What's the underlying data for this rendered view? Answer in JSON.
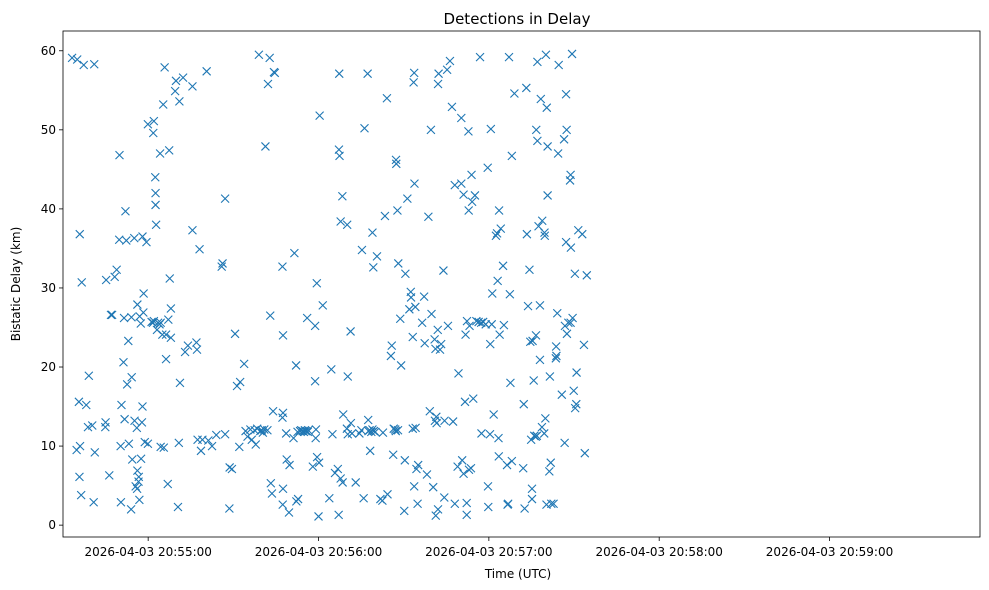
{
  "chart_data": {
    "type": "scatter",
    "title": "Detections in Delay",
    "xlabel": "Time (UTC)",
    "ylabel": "Bistatic Delay (km)",
    "marker": "x",
    "color": "#1f77b4",
    "x_unit": "seconds after 2026-04-03 20:54:00",
    "xlim": [
      30,
      353
    ],
    "ylim": [
      -1.5,
      62.5
    ],
    "xticks": [
      60,
      120,
      180,
      240,
      300
    ],
    "xtick_labels": [
      "2026-04-03 20:55:00",
      "2026-04-03 20:56:00",
      "2026-04-03 20:57:00",
      "2026-04-03 20:58:00",
      "2026-04-03 20:59:00"
    ],
    "yticks": [
      0,
      10,
      20,
      30,
      40,
      50,
      60
    ],
    "ytick_labels": [
      "0",
      "10",
      "20",
      "30",
      "40",
      "50",
      "60"
    ],
    "points": [
      [
        33.2,
        59.1
      ],
      [
        35.0,
        58.9
      ],
      [
        37.3,
        58.2
      ],
      [
        41.0,
        58.3
      ],
      [
        34.8,
        9.5
      ],
      [
        36.0,
        10.0
      ],
      [
        35.8,
        6.1
      ],
      [
        36.4,
        3.8
      ],
      [
        35.6,
        15.6
      ],
      [
        35.9,
        36.8
      ],
      [
        36.6,
        30.7
      ],
      [
        38.2,
        15.2
      ],
      [
        38.8,
        12.4
      ],
      [
        39.1,
        18.9
      ],
      [
        40.8,
        2.9
      ],
      [
        41.2,
        9.2
      ],
      [
        40.3,
        12.6
      ],
      [
        45.2,
        31.0
      ],
      [
        45.0,
        13.0
      ],
      [
        44.9,
        12.4
      ],
      [
        46.3,
        6.3
      ],
      [
        46.9,
        26.6
      ],
      [
        47.3,
        26.6
      ],
      [
        48.2,
        31.4
      ],
      [
        48.9,
        32.3
      ],
      [
        49.9,
        46.8
      ],
      [
        49.8,
        36.1
      ],
      [
        50.3,
        10.0
      ],
      [
        50.4,
        2.9
      ],
      [
        50.6,
        15.2
      ],
      [
        51.3,
        20.6
      ],
      [
        51.5,
        26.2
      ],
      [
        51.7,
        13.4
      ],
      [
        52.0,
        39.7
      ],
      [
        52.3,
        36.0
      ],
      [
        52.6,
        17.8
      ],
      [
        53.0,
        23.3
      ],
      [
        53.2,
        10.3
      ],
      [
        54.2,
        18.7
      ],
      [
        54.1,
        26.3
      ],
      [
        54.4,
        8.3
      ],
      [
        54.0,
        2.0
      ],
      [
        55.1,
        36.3
      ],
      [
        55.2,
        13.2
      ],
      [
        56.2,
        27.9
      ],
      [
        55.6,
        4.9
      ],
      [
        56.0,
        12.3
      ],
      [
        56.1,
        4.6
      ],
      [
        56.2,
        6.9
      ],
      [
        56.6,
        5.5
      ],
      [
        56.7,
        6.1
      ],
      [
        56.9,
        3.2
      ],
      [
        57.0,
        26.4
      ],
      [
        57.4,
        25.5
      ],
      [
        57.5,
        8.4
      ],
      [
        57.8,
        13.0
      ],
      [
        58.0,
        36.5
      ],
      [
        58.0,
        15.0
      ],
      [
        58.3,
        26.9
      ],
      [
        58.4,
        29.3
      ],
      [
        58.8,
        10.5
      ],
      [
        59.9,
        10.3
      ],
      [
        59.4,
        35.8
      ],
      [
        59.9,
        50.7
      ],
      [
        61.2,
        25.7
      ],
      [
        61.7,
        25.6
      ],
      [
        62.0,
        25.8
      ],
      [
        61.8,
        49.6
      ],
      [
        62.0,
        51.1
      ],
      [
        62.6,
        40.5
      ],
      [
        62.6,
        42.0
      ],
      [
        62.5,
        44.0
      ],
      [
        62.8,
        38.0
      ],
      [
        63.1,
        24.7
      ],
      [
        63.5,
        25.6
      ],
      [
        64.0,
        25.4
      ],
      [
        64.4,
        25.6
      ],
      [
        64.2,
        47.0
      ],
      [
        64.4,
        9.9
      ],
      [
        65.3,
        53.2
      ],
      [
        65.0,
        24.1
      ],
      [
        65.5,
        9.8
      ],
      [
        65.8,
        57.9
      ],
      [
        66.3,
        24.1
      ],
      [
        66.3,
        21.0
      ],
      [
        66.9,
        5.2
      ],
      [
        67.1,
        26.0
      ],
      [
        67.4,
        47.4
      ],
      [
        67.6,
        31.2
      ],
      [
        68.0,
        27.4
      ],
      [
        68.0,
        23.7
      ],
      [
        69.5,
        54.9
      ],
      [
        69.8,
        56.2
      ],
      [
        70.5,
        2.3
      ],
      [
        71.2,
        18.0
      ],
      [
        71.0,
        53.6
      ],
      [
        70.8,
        10.4
      ],
      [
        72.3,
        56.6
      ],
      [
        73.0,
        21.9
      ],
      [
        74.0,
        22.7
      ],
      [
        75.6,
        55.5
      ],
      [
        75.6,
        37.3
      ],
      [
        77.0,
        23.1
      ],
      [
        77.2,
        22.2
      ],
      [
        77.4,
        10.8
      ],
      [
        78.1,
        34.9
      ],
      [
        78.6,
        9.4
      ],
      [
        79.1,
        10.8
      ],
      [
        80.6,
        57.4
      ],
      [
        81.2,
        10.7
      ],
      [
        82.5,
        10.0
      ],
      [
        84.0,
        11.4
      ],
      [
        85.9,
        32.7
      ],
      [
        86.2,
        33.1
      ],
      [
        87.1,
        11.5
      ],
      [
        87.1,
        41.3
      ],
      [
        88.6,
        2.1
      ],
      [
        88.7,
        7.3
      ],
      [
        89.5,
        7.1
      ],
      [
        90.6,
        24.2
      ],
      [
        91.3,
        17.6
      ],
      [
        92.1,
        9.9
      ],
      [
        92.4,
        18.1
      ],
      [
        93.8,
        20.4
      ],
      [
        94.3,
        11.9
      ],
      [
        95.0,
        11.2
      ],
      [
        96.0,
        12.1
      ],
      [
        96.5,
        10.8
      ],
      [
        97.5,
        12.0
      ],
      [
        97.9,
        10.2
      ],
      [
        98.4,
        12.2
      ],
      [
        99.0,
        59.5
      ],
      [
        99.5,
        11.9
      ],
      [
        100.0,
        12.0
      ],
      [
        100.4,
        11.7
      ],
      [
        100.9,
        12.1
      ],
      [
        101.3,
        47.9
      ],
      [
        102.0,
        12.0
      ],
      [
        102.2,
        55.8
      ],
      [
        102.8,
        59.1
      ],
      [
        103.2,
        5.3
      ],
      [
        103.0,
        26.5
      ],
      [
        103.6,
        4.0
      ],
      [
        104.0,
        14.4
      ],
      [
        104.3,
        57.3
      ],
      [
        104.6,
        57.2
      ],
      [
        107.3,
        32.7
      ],
      [
        107.4,
        2.6
      ],
      [
        107.5,
        4.6
      ],
      [
        107.5,
        14.2
      ],
      [
        107.3,
        13.6
      ],
      [
        107.5,
        24.0
      ],
      [
        108.6,
        11.6
      ],
      [
        108.8,
        8.3
      ],
      [
        109.6,
        1.6
      ],
      [
        109.8,
        7.6
      ],
      [
        111.2,
        11.0
      ],
      [
        111.5,
        34.4
      ],
      [
        112.1,
        20.2
      ],
      [
        112.2,
        3.0
      ],
      [
        112.6,
        11.8
      ],
      [
        112.8,
        3.3
      ],
      [
        113.5,
        11.9
      ],
      [
        113.9,
        12.0
      ],
      [
        114.4,
        11.9
      ],
      [
        114.9,
        11.8
      ],
      [
        115.2,
        12.0
      ],
      [
        115.5,
        11.9
      ],
      [
        116.0,
        26.2
      ],
      [
        116.2,
        11.8
      ],
      [
        116.4,
        12.0
      ],
      [
        118.0,
        7.4
      ],
      [
        118.8,
        18.2
      ],
      [
        118.8,
        25.2
      ],
      [
        119.0,
        11.0
      ],
      [
        119.1,
        12.1
      ],
      [
        119.4,
        30.6
      ],
      [
        119.5,
        8.6
      ],
      [
        120.0,
        1.1
      ],
      [
        120.2,
        7.9
      ],
      [
        120.4,
        51.8
      ],
      [
        121.5,
        27.8
      ],
      [
        123.8,
        3.4
      ],
      [
        124.5,
        19.7
      ],
      [
        124.9,
        11.5
      ],
      [
        125.8,
        6.6
      ],
      [
        126.8,
        7.1
      ],
      [
        127.1,
        1.3
      ],
      [
        127.3,
        57.1
      ],
      [
        127.2,
        47.5
      ],
      [
        127.4,
        46.7
      ],
      [
        127.8,
        38.4
      ],
      [
        127.8,
        5.9
      ],
      [
        128.4,
        41.6
      ],
      [
        128.5,
        5.4
      ],
      [
        128.7,
        14.0
      ],
      [
        130.0,
        12.2
      ],
      [
        130.1,
        38.0
      ],
      [
        130.3,
        18.8
      ],
      [
        130.3,
        11.5
      ],
      [
        131.3,
        24.5
      ],
      [
        131.4,
        12.9
      ],
      [
        131.8,
        11.6
      ],
      [
        133.1,
        5.4
      ],
      [
        134.4,
        11.6
      ],
      [
        135.1,
        12.0
      ],
      [
        135.3,
        34.8
      ],
      [
        135.9,
        3.4
      ],
      [
        136.2,
        50.2
      ],
      [
        137.3,
        57.1
      ],
      [
        137.5,
        13.3
      ],
      [
        137.6,
        11.9
      ],
      [
        138.0,
        12.0
      ],
      [
        138.2,
        9.4
      ],
      [
        138.6,
        11.8
      ],
      [
        139.0,
        12.1
      ],
      [
        139.5,
        11.9
      ],
      [
        139.0,
        37.0
      ],
      [
        139.3,
        32.6
      ],
      [
        140.0,
        11.8
      ],
      [
        140.6,
        34.0
      ],
      [
        141.8,
        3.3
      ],
      [
        142.5,
        3.1
      ],
      [
        142.7,
        11.7
      ],
      [
        143.4,
        39.1
      ],
      [
        144.1,
        54.0
      ],
      [
        144.3,
        3.9
      ],
      [
        145.5,
        21.4
      ],
      [
        145.8,
        22.7
      ],
      [
        146.5,
        12.2
      ],
      [
        146.3,
        8.9
      ],
      [
        147.0,
        12.1
      ],
      [
        147.2,
        11.9
      ],
      [
        147.3,
        46.2
      ],
      [
        147.4,
        45.7
      ],
      [
        148.0,
        12.0
      ],
      [
        147.8,
        39.8
      ],
      [
        148.1,
        33.1
      ],
      [
        148.8,
        26.1
      ],
      [
        149.1,
        20.2
      ],
      [
        150.2,
        1.8
      ],
      [
        150.4,
        8.2
      ],
      [
        150.6,
        31.8
      ],
      [
        151.3,
        41.3
      ],
      [
        152.0,
        27.3
      ],
      [
        152.5,
        29.5
      ],
      [
        152.6,
        28.8
      ],
      [
        153.2,
        12.2
      ],
      [
        153.2,
        23.8
      ],
      [
        153.7,
        57.2
      ],
      [
        153.5,
        56.0
      ],
      [
        153.7,
        4.9
      ],
      [
        153.8,
        43.2
      ],
      [
        154.2,
        12.3
      ],
      [
        154.1,
        27.6
      ],
      [
        154.5,
        7.1
      ],
      [
        154.9,
        2.7
      ],
      [
        155.1,
        7.6
      ],
      [
        156.5,
        25.6
      ],
      [
        157.2,
        28.9
      ],
      [
        157.4,
        23.0
      ],
      [
        158.2,
        6.4
      ],
      [
        158.7,
        39.0
      ],
      [
        159.2,
        14.4
      ],
      [
        159.6,
        50.0
      ],
      [
        159.8,
        26.7
      ],
      [
        160.4,
        4.8
      ],
      [
        161.0,
        13.2
      ],
      [
        160.9,
        23.5
      ],
      [
        161.2,
        22.3
      ],
      [
        161.3,
        1.2
      ],
      [
        161.5,
        13.7
      ],
      [
        161.6,
        12.9
      ],
      [
        162.0,
        24.7
      ],
      [
        162.1,
        55.8
      ],
      [
        162.3,
        57.1
      ],
      [
        162.1,
        2.0
      ],
      [
        162.8,
        22.2
      ],
      [
        163.2,
        22.9
      ],
      [
        164.0,
        32.2
      ],
      [
        164.3,
        3.5
      ],
      [
        164.4,
        13.2
      ],
      [
        165.3,
        57.6
      ],
      [
        165.6,
        25.2
      ],
      [
        166.3,
        58.7
      ],
      [
        167.4,
        13.1
      ],
      [
        167.0,
        52.9
      ],
      [
        168.0,
        2.7
      ],
      [
        168.0,
        43.0
      ],
      [
        169.0,
        7.4
      ],
      [
        169.3,
        19.2
      ],
      [
        170.3,
        43.2
      ],
      [
        170.3,
        51.5
      ],
      [
        170.6,
        8.2
      ],
      [
        171.1,
        6.5
      ],
      [
        171.1,
        41.8
      ],
      [
        171.6,
        15.6
      ],
      [
        171.8,
        24.1
      ],
      [
        172.2,
        2.8
      ],
      [
        172.2,
        1.3
      ],
      [
        172.3,
        25.8
      ],
      [
        172.8,
        49.8
      ],
      [
        172.9,
        39.8
      ],
      [
        173.0,
        7.0
      ],
      [
        173.2,
        25.2
      ],
      [
        173.7,
        7.2
      ],
      [
        173.9,
        44.3
      ],
      [
        174.1,
        40.9
      ],
      [
        174.5,
        16.0
      ],
      [
        175.1,
        41.7
      ],
      [
        175.6,
        25.8
      ],
      [
        176.4,
        25.7
      ],
      [
        176.9,
        59.2
      ],
      [
        177.3,
        25.6
      ],
      [
        177.4,
        11.6
      ],
      [
        178.0,
        25.7
      ],
      [
        178.9,
        25.4
      ],
      [
        179.6,
        45.2
      ],
      [
        179.7,
        4.9
      ],
      [
        179.8,
        2.3
      ],
      [
        180.4,
        11.5
      ],
      [
        180.5,
        22.9
      ],
      [
        180.7,
        50.1
      ],
      [
        181.0,
        25.4
      ],
      [
        181.2,
        29.3
      ],
      [
        181.7,
        14.0
      ],
      [
        182.5,
        36.6
      ],
      [
        182.9,
        36.9
      ],
      [
        183.1,
        30.9
      ],
      [
        183.4,
        11.0
      ],
      [
        183.5,
        8.7
      ],
      [
        183.6,
        39.8
      ],
      [
        183.8,
        24.1
      ],
      [
        184.2,
        37.5
      ],
      [
        185.0,
        32.8
      ],
      [
        185.3,
        25.3
      ],
      [
        186.4,
        7.6
      ],
      [
        186.6,
        2.6
      ],
      [
        186.8,
        2.7
      ],
      [
        187.1,
        59.2
      ],
      [
        187.4,
        29.2
      ],
      [
        187.6,
        18.0
      ],
      [
        188.1,
        8.1
      ],
      [
        188.1,
        46.7
      ],
      [
        189.0,
        54.6
      ],
      [
        192.1,
        7.2
      ],
      [
        192.3,
        15.3
      ],
      [
        192.6,
        2.1
      ],
      [
        193.2,
        55.3
      ],
      [
        193.4,
        36.8
      ],
      [
        193.8,
        27.7
      ],
      [
        194.3,
        32.3
      ],
      [
        194.6,
        23.2
      ],
      [
        194.9,
        10.8
      ],
      [
        195.2,
        3.3
      ],
      [
        195.2,
        4.6
      ],
      [
        195.4,
        23.3
      ],
      [
        195.8,
        18.3
      ],
      [
        196.0,
        11.3
      ],
      [
        196.5,
        11.2
      ],
      [
        196.6,
        24.0
      ],
      [
        196.9,
        11.3
      ],
      [
        197.1,
        58.6
      ],
      [
        196.7,
        50.0
      ],
      [
        197.1,
        48.6
      ],
      [
        197.5,
        37.8
      ],
      [
        198.0,
        20.9
      ],
      [
        198.0,
        27.8
      ],
      [
        198.3,
        53.9
      ],
      [
        198.7,
        12.4
      ],
      [
        198.8,
        38.5
      ],
      [
        199.5,
        11.6
      ],
      [
        199.6,
        37.0
      ],
      [
        199.7,
        36.6
      ],
      [
        199.9,
        13.5
      ],
      [
        200.1,
        59.5
      ],
      [
        200.3,
        2.6
      ],
      [
        200.4,
        52.8
      ],
      [
        200.7,
        47.9
      ],
      [
        200.7,
        41.7
      ],
      [
        201.3,
        6.8
      ],
      [
        201.8,
        7.9
      ],
      [
        201.5,
        18.8
      ],
      [
        202.0,
        2.7
      ],
      [
        202.8,
        2.7
      ],
      [
        203.6,
        21.1
      ],
      [
        203.7,
        22.6
      ],
      [
        203.8,
        21.4
      ],
      [
        204.1,
        26.8
      ],
      [
        204.4,
        47.0
      ],
      [
        204.6,
        58.2
      ],
      [
        205.7,
        16.5
      ],
      [
        206.7,
        10.4
      ],
      [
        206.5,
        48.8
      ],
      [
        207.2,
        35.8
      ],
      [
        206.8,
        25.2
      ],
      [
        207.4,
        50.0
      ],
      [
        207.2,
        54.5
      ],
      [
        207.5,
        24.2
      ],
      [
        208.0,
        25.6
      ],
      [
        208.6,
        43.6
      ],
      [
        208.8,
        44.3
      ],
      [
        208.8,
        25.6
      ],
      [
        208.9,
        35.1
      ],
      [
        209.3,
        59.6
      ],
      [
        209.5,
        26.2
      ],
      [
        209.9,
        17.0
      ],
      [
        210.3,
        31.8
      ],
      [
        210.4,
        14.8
      ],
      [
        210.8,
        15.3
      ],
      [
        210.9,
        19.3
      ],
      [
        211.5,
        37.3
      ],
      [
        212.9,
        36.8
      ],
      [
        213.5,
        22.8
      ],
      [
        213.8,
        9.1
      ],
      [
        214.5,
        31.6
      ]
    ]
  }
}
